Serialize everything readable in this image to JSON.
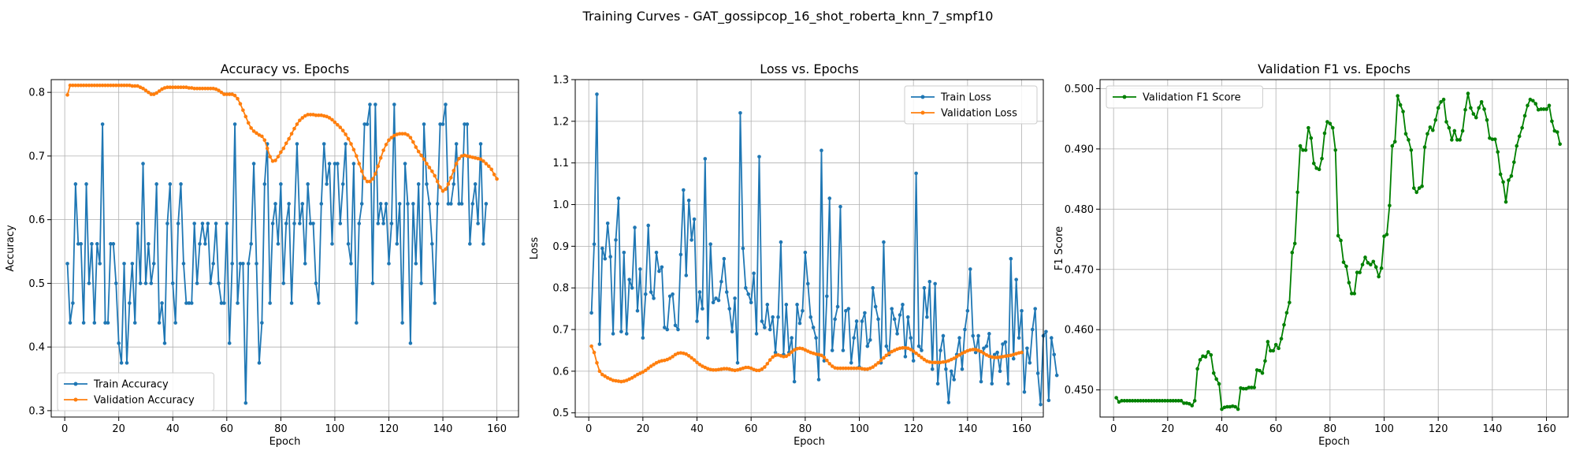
{
  "figure": {
    "suptitle": "Training Curves - GAT_gossipcop_16_shot_roberta_knn_7_smpf10"
  },
  "colors": {
    "blue": "#1f77b4",
    "orange": "#ff7f0e",
    "green": "#008000",
    "grid": "#b0b0b0"
  },
  "chart_data": [
    {
      "type": "line",
      "title": "Accuracy vs. Epochs",
      "xlabel": "Epoch",
      "ylabel": "Accuracy",
      "xlim": [
        -5,
        168
      ],
      "ylim": [
        0.29,
        0.82
      ],
      "xticks": [
        0,
        20,
        40,
        60,
        80,
        100,
        120,
        140,
        160
      ],
      "yticks": [
        0.3,
        0.4,
        0.5,
        0.6,
        0.7,
        0.8
      ],
      "ytick_decimals": 1,
      "grid": true,
      "legend": "lower left",
      "series": [
        {
          "name": "Train Accuracy",
          "color": "#1f77b4",
          "values": [
            0.531,
            0.438,
            0.469,
            0.656,
            0.562,
            0.562,
            0.438,
            0.656,
            0.5,
            0.562,
            0.438,
            0.562,
            0.531,
            0.75,
            0.438,
            0.438,
            0.562,
            0.562,
            0.5,
            0.406,
            0.375,
            0.531,
            0.375,
            0.469,
            0.531,
            0.438,
            0.594,
            0.5,
            0.688,
            0.5,
            0.562,
            0.5,
            0.531,
            0.656,
            0.438,
            0.469,
            0.406,
            0.594,
            0.656,
            0.5,
            0.438,
            0.594,
            0.656,
            0.531,
            0.469,
            0.469,
            0.469,
            0.594,
            0.5,
            0.562,
            0.594,
            0.562,
            0.594,
            0.5,
            0.531,
            0.594,
            0.5,
            0.469,
            0.469,
            0.594,
            0.406,
            0.531,
            0.75,
            0.469,
            0.531,
            0.531,
            0.312,
            0.531,
            0.562,
            0.688,
            0.531,
            0.375,
            0.438,
            0.656,
            0.719,
            0.469,
            0.594,
            0.625,
            0.562,
            0.656,
            0.5,
            0.594,
            0.625,
            0.469,
            0.594,
            0.719,
            0.594,
            0.625,
            0.531,
            0.656,
            0.594,
            0.594,
            0.5,
            0.469,
            0.625,
            0.719,
            0.656,
            0.688,
            0.562,
            0.688,
            0.688,
            0.594,
            0.656,
            0.719,
            0.562,
            0.531,
            0.688,
            0.438,
            0.594,
            0.625,
            0.75,
            0.75,
            0.781,
            0.5,
            0.781,
            0.594,
            0.625,
            0.594,
            0.625,
            0.531,
            0.594,
            0.781,
            0.562,
            0.625,
            0.438,
            0.688,
            0.625,
            0.406,
            0.625,
            0.531,
            0.656,
            0.5,
            0.75,
            0.656,
            0.625,
            0.562,
            0.469,
            0.625,
            0.75,
            0.75,
            0.781,
            0.625,
            0.625,
            0.656,
            0.719,
            0.625,
            0.625,
            0.75,
            0.75,
            0.562,
            0.625,
            0.656,
            0.594,
            0.719,
            0.562,
            0.625
          ]
        },
        {
          "name": "Validation Accuracy",
          "color": "#ff7f0e",
          "values": [
            0.796,
            0.811,
            0.811,
            0.811,
            0.811,
            0.811,
            0.811,
            0.811,
            0.811,
            0.811,
            0.811,
            0.811,
            0.811,
            0.811,
            0.811,
            0.811,
            0.811,
            0.811,
            0.811,
            0.811,
            0.811,
            0.811,
            0.811,
            0.811,
            0.81,
            0.81,
            0.81,
            0.808,
            0.806,
            0.803,
            0.8,
            0.797,
            0.797,
            0.799,
            0.802,
            0.805,
            0.807,
            0.808,
            0.808,
            0.808,
            0.808,
            0.808,
            0.808,
            0.808,
            0.808,
            0.807,
            0.807,
            0.806,
            0.806,
            0.806,
            0.806,
            0.806,
            0.806,
            0.806,
            0.806,
            0.805,
            0.803,
            0.8,
            0.797,
            0.797,
            0.797,
            0.797,
            0.795,
            0.79,
            0.782,
            0.772,
            0.762,
            0.752,
            0.744,
            0.739,
            0.736,
            0.733,
            0.731,
            0.725,
            0.712,
            0.699,
            0.692,
            0.693,
            0.699,
            0.706,
            0.712,
            0.72,
            0.727,
            0.735,
            0.743,
            0.75,
            0.756,
            0.76,
            0.763,
            0.765,
            0.765,
            0.765,
            0.764,
            0.764,
            0.764,
            0.763,
            0.762,
            0.76,
            0.757,
            0.753,
            0.749,
            0.745,
            0.74,
            0.734,
            0.727,
            0.719,
            0.71,
            0.7,
            0.688,
            0.676,
            0.665,
            0.66,
            0.66,
            0.664,
            0.672,
            0.684,
            0.697,
            0.709,
            0.718,
            0.725,
            0.729,
            0.732,
            0.734,
            0.735,
            0.735,
            0.735,
            0.733,
            0.729,
            0.722,
            0.714,
            0.707,
            0.701,
            0.695,
            0.688,
            0.682,
            0.676,
            0.669,
            0.66,
            0.651,
            0.645,
            0.648,
            0.656,
            0.666,
            0.677,
            0.688,
            0.696,
            0.7,
            0.701,
            0.7,
            0.699,
            0.698,
            0.697,
            0.696,
            0.695,
            0.692,
            0.688,
            0.684,
            0.679,
            0.671,
            0.664
          ]
        }
      ]
    },
    {
      "type": "line",
      "title": "Loss vs. Epochs",
      "xlabel": "Epoch",
      "ylabel": "Loss",
      "xlim": [
        -5,
        168
      ],
      "ylim": [
        0.49,
        1.3
      ],
      "xticks": [
        0,
        20,
        40,
        60,
        80,
        100,
        120,
        140,
        160
      ],
      "yticks": [
        0.5,
        0.6,
        0.7,
        0.8,
        0.9,
        1.0,
        1.1,
        1.2,
        1.3
      ],
      "ytick_decimals": 1,
      "grid": true,
      "legend": "upper right",
      "series": [
        {
          "name": "Train Loss",
          "color": "#1f77b4",
          "values": [
            0.74,
            0.905,
            1.265,
            0.665,
            0.895,
            0.87,
            0.955,
            0.875,
            0.69,
            0.915,
            1.015,
            0.695,
            0.885,
            0.69,
            0.82,
            0.8,
            0.945,
            0.745,
            0.845,
            0.68,
            0.785,
            0.95,
            0.79,
            0.775,
            0.885,
            0.84,
            0.85,
            0.705,
            0.7,
            0.78,
            0.785,
            0.71,
            0.7,
            0.88,
            1.035,
            0.83,
            1.01,
            0.915,
            0.965,
            0.72,
            0.79,
            0.75,
            1.11,
            0.68,
            0.905,
            0.765,
            0.775,
            0.77,
            0.815,
            0.87,
            0.79,
            0.75,
            0.695,
            0.775,
            0.62,
            1.22,
            0.895,
            0.8,
            0.785,
            0.765,
            0.835,
            0.69,
            1.115,
            0.72,
            0.705,
            0.76,
            0.7,
            0.73,
            0.645,
            0.73,
            0.91,
            0.64,
            0.76,
            0.645,
            0.68,
            0.575,
            0.76,
            0.715,
            0.745,
            0.885,
            0.81,
            0.73,
            0.705,
            0.68,
            0.58,
            1.13,
            0.625,
            0.78,
            1.015,
            0.65,
            0.725,
            0.755,
            0.995,
            0.65,
            0.745,
            0.75,
            0.62,
            0.68,
            0.72,
            0.61,
            0.72,
            0.74,
            0.66,
            0.675,
            0.8,
            0.755,
            0.725,
            0.62,
            0.91,
            0.66,
            0.64,
            0.75,
            0.725,
            0.69,
            0.735,
            0.76,
            0.635,
            0.73,
            0.68,
            0.625,
            1.075,
            0.66,
            0.65,
            0.8,
            0.73,
            0.815,
            0.605,
            0.81,
            0.57,
            0.65,
            0.685,
            0.605,
            0.525,
            0.6,
            0.58,
            0.64,
            0.68,
            0.605,
            0.7,
            0.745,
            0.845,
            0.685,
            0.645,
            0.685,
            0.575,
            0.655,
            0.66,
            0.69,
            0.57,
            0.64,
            0.645,
            0.6,
            0.665,
            0.67,
            0.57,
            0.87,
            0.63,
            0.82,
            0.68,
            0.745,
            0.55,
            0.655,
            0.62,
            0.7,
            0.75,
            0.595,
            0.52,
            0.685,
            0.695,
            0.53,
            0.68,
            0.64,
            0.59
          ]
        },
        {
          "name": "Validation Loss",
          "color": "#ff7f0e",
          "values": [
            0.66,
            0.645,
            0.62,
            0.6,
            0.592,
            0.588,
            0.584,
            0.581,
            0.578,
            0.577,
            0.576,
            0.575,
            0.576,
            0.578,
            0.581,
            0.584,
            0.588,
            0.592,
            0.595,
            0.598,
            0.602,
            0.607,
            0.612,
            0.616,
            0.62,
            0.623,
            0.625,
            0.626,
            0.628,
            0.631,
            0.635,
            0.64,
            0.643,
            0.644,
            0.643,
            0.641,
            0.637,
            0.632,
            0.627,
            0.621,
            0.616,
            0.612,
            0.609,
            0.606,
            0.604,
            0.603,
            0.603,
            0.604,
            0.605,
            0.606,
            0.606,
            0.605,
            0.603,
            0.602,
            0.603,
            0.605,
            0.607,
            0.609,
            0.609,
            0.607,
            0.604,
            0.602,
            0.602,
            0.605,
            0.61,
            0.618,
            0.627,
            0.634,
            0.638,
            0.639,
            0.637,
            0.635,
            0.636,
            0.64,
            0.646,
            0.651,
            0.654,
            0.655,
            0.654,
            0.651,
            0.648,
            0.645,
            0.643,
            0.641,
            0.64,
            0.638,
            0.633,
            0.626,
            0.618,
            0.612,
            0.608,
            0.607,
            0.607,
            0.607,
            0.607,
            0.607,
            0.607,
            0.607,
            0.607,
            0.607,
            0.606,
            0.605,
            0.605,
            0.607,
            0.61,
            0.615,
            0.62,
            0.626,
            0.632,
            0.638,
            0.643,
            0.647,
            0.65,
            0.653,
            0.655,
            0.656,
            0.656,
            0.655,
            0.652,
            0.648,
            0.643,
            0.638,
            0.633,
            0.628,
            0.624,
            0.622,
            0.621,
            0.621,
            0.621,
            0.621,
            0.622,
            0.623,
            0.625,
            0.628,
            0.631,
            0.635,
            0.639,
            0.643,
            0.646,
            0.649,
            0.651,
            0.652,
            0.652,
            0.65,
            0.647,
            0.643,
            0.639,
            0.636,
            0.634,
            0.633,
            0.633,
            0.634,
            0.635,
            0.636,
            0.637,
            0.638,
            0.64,
            0.642,
            0.644,
            0.645
          ]
        }
      ]
    },
    {
      "type": "line",
      "title": "Validation F1 vs. Epochs",
      "xlabel": "Epoch",
      "ylabel": "F1 Score",
      "xlim": [
        -5,
        168
      ],
      "ylim": [
        0.4455,
        0.5015
      ],
      "xticks": [
        0,
        20,
        40,
        60,
        80,
        100,
        120,
        140,
        160
      ],
      "yticks": [
        0.45,
        0.46,
        0.47,
        0.48,
        0.49,
        0.5
      ],
      "ytick_decimals": 3,
      "grid": true,
      "legend": "upper left",
      "series": [
        {
          "name": "Validation F1 Score",
          "color": "#008000",
          "values": [
            0.4487,
            0.448,
            0.4482,
            0.4482,
            0.4482,
            0.4482,
            0.4482,
            0.4482,
            0.4482,
            0.4482,
            0.4482,
            0.4482,
            0.4482,
            0.4482,
            0.4482,
            0.4482,
            0.4482,
            0.4482,
            0.4482,
            0.4482,
            0.4482,
            0.4482,
            0.4482,
            0.4482,
            0.4482,
            0.4478,
            0.4478,
            0.4477,
            0.4474,
            0.4482,
            0.4535,
            0.455,
            0.4556,
            0.4555,
            0.4563,
            0.4558,
            0.4528,
            0.4518,
            0.451,
            0.4468,
            0.4471,
            0.4472,
            0.4472,
            0.4473,
            0.4472,
            0.4468,
            0.4503,
            0.4502,
            0.4502,
            0.4504,
            0.4504,
            0.4504,
            0.4533,
            0.4532,
            0.4528,
            0.4548,
            0.458,
            0.4565,
            0.4565,
            0.4575,
            0.4569,
            0.4585,
            0.4608,
            0.4628,
            0.4645,
            0.4728,
            0.4743,
            0.4828,
            0.4905,
            0.4898,
            0.4898,
            0.4935,
            0.4918,
            0.4876,
            0.4868,
            0.4866,
            0.4884,
            0.4926,
            0.4945,
            0.4942,
            0.4935,
            0.4898,
            0.4756,
            0.4748,
            0.4712,
            0.4705,
            0.4678,
            0.466,
            0.466,
            0.4695,
            0.4695,
            0.4708,
            0.472,
            0.4711,
            0.4708,
            0.4713,
            0.4704,
            0.4688,
            0.4702,
            0.4755,
            0.4758,
            0.4806,
            0.4905,
            0.4912,
            0.4988,
            0.4973,
            0.4962,
            0.4925,
            0.4915,
            0.4898,
            0.4835,
            0.4828,
            0.4835,
            0.4838,
            0.4903,
            0.4925,
            0.4936,
            0.4931,
            0.4948,
            0.4968,
            0.4978,
            0.4982,
            0.4945,
            0.4935,
            0.4915,
            0.493,
            0.4915,
            0.4915,
            0.493,
            0.4965,
            0.4992,
            0.4968,
            0.4958,
            0.4952,
            0.4968,
            0.4978,
            0.4966,
            0.4948,
            0.4918,
            0.4916,
            0.4916,
            0.4895,
            0.4858,
            0.4845,
            0.4812,
            0.4848,
            0.4855,
            0.4878,
            0.4905,
            0.4921,
            0.4935,
            0.4955,
            0.4972,
            0.4982,
            0.498,
            0.4975,
            0.4965,
            0.4966,
            0.4966,
            0.4966,
            0.4972,
            0.4946,
            0.493,
            0.4928,
            0.4908
          ]
        }
      ]
    }
  ]
}
